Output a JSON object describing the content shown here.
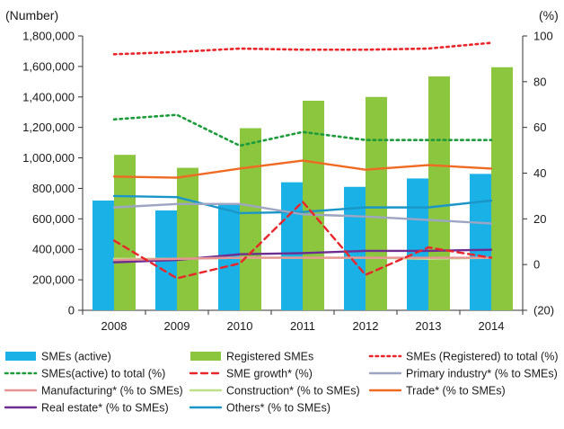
{
  "chart_data": {
    "type": "bar",
    "title": "",
    "categories": [
      "2008",
      "2009",
      "2010",
      "2011",
      "2012",
      "2013",
      "2014"
    ],
    "y_left": {
      "label": "(Number)",
      "ylim": [
        0,
        1800000
      ],
      "ticks": [
        0,
        200000,
        400000,
        600000,
        800000,
        1000000,
        1200000,
        1400000,
        1600000,
        1800000
      ],
      "tick_labels": [
        "0",
        "200,000",
        "400,000",
        "600,000",
        "800,000",
        "1,000,000",
        "1,200,000",
        "1,400,000",
        "1,600,000",
        "1,800,000"
      ]
    },
    "y_right": {
      "label": "(%)",
      "ylim": [
        -20,
        100
      ],
      "ticks": [
        -20,
        0,
        20,
        40,
        60,
        80,
        100
      ],
      "tick_labels": [
        "(20)",
        "0",
        "20",
        "40",
        "60",
        "80",
        "100"
      ]
    },
    "series": [
      {
        "name": "SMEs (active)",
        "type": "bar",
        "axis": "left",
        "color": "#1ab1e6",
        "values": [
          720000,
          655000,
          700000,
          840000,
          810000,
          865000,
          895000
        ]
      },
      {
        "name": "Registered SMEs",
        "type": "bar",
        "axis": "left",
        "color": "#8cc63f",
        "values": [
          1020000,
          935000,
          1195000,
          1375000,
          1400000,
          1535000,
          1595000
        ]
      },
      {
        "name": "SMEs (Registered) to total (%)",
        "type": "line",
        "axis": "right",
        "color": "#e8262b",
        "dash": "dot",
        "values": [
          92,
          93,
          94.5,
          94,
          94,
          94.5,
          97
        ]
      },
      {
        "name": "SMEs(active) to total (%)",
        "type": "line",
        "axis": "right",
        "color": "#1e9b3b",
        "dash": "dot",
        "values": [
          63.5,
          65.5,
          52,
          58,
          54.5,
          54.5,
          54.5
        ]
      },
      {
        "name": "SME growth* (%)",
        "type": "line",
        "axis": "right",
        "color": "#e8262b",
        "dash": "dash",
        "values": [
          10.5,
          -6,
          0.5,
          27.5,
          -4.5,
          7.5,
          3
        ]
      },
      {
        "name": "Primary industry* (% to SMEs)",
        "type": "line",
        "axis": "right",
        "color": "#9da5c2",
        "dash": "solid",
        "values": [
          25,
          26.5,
          26.5,
          22,
          21,
          19.5,
          18
        ]
      },
      {
        "name": "Manufacturing* (% to SMEs)",
        "type": "line",
        "axis": "right",
        "color": "#e89494",
        "dash": "solid",
        "values": [
          2,
          2.5,
          3,
          3,
          3,
          3,
          3
        ]
      },
      {
        "name": "Construction* (% to SMEs)",
        "type": "line",
        "axis": "right",
        "color": "#bfe08a",
        "dash": "solid",
        "values": [
          2.5,
          2.5,
          3,
          3,
          3,
          2.5,
          3
        ]
      },
      {
        "name": "Trade* (% to SMEs)",
        "type": "line",
        "axis": "right",
        "color": "#ef6a23",
        "dash": "solid",
        "values": [
          38.5,
          38,
          42,
          45.5,
          41.5,
          43.5,
          42
        ]
      },
      {
        "name": "Real estate* (% to SMEs)",
        "type": "line",
        "axis": "right",
        "color": "#6e2d91",
        "dash": "solid",
        "values": [
          1,
          2,
          4.5,
          5,
          6,
          6,
          6.5
        ]
      },
      {
        "name": "Others* (% to SMEs)",
        "type": "line",
        "axis": "right",
        "color": "#1a96c8",
        "dash": "solid",
        "values": [
          30,
          29.5,
          22.5,
          23,
          25,
          25,
          28
        ]
      }
    ],
    "grid": false,
    "legend": "bottom"
  }
}
